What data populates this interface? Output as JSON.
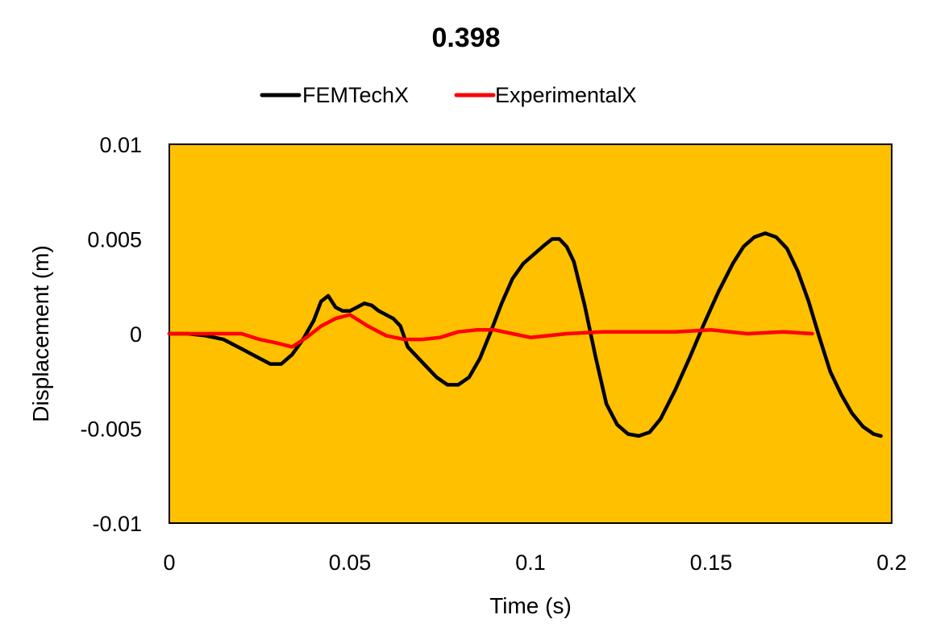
{
  "chart_data": {
    "type": "line",
    "title": "0.398",
    "xlabel": "Time (s)",
    "ylabel": "Displacement (m)",
    "xlim": [
      0,
      0.2
    ],
    "ylim": [
      -0.01,
      0.01
    ],
    "xticks": [
      0,
      0.05,
      0.1,
      0.15,
      0.2
    ],
    "xtick_labels": [
      "0",
      "0.05",
      "0.1",
      "0.15",
      "0.2"
    ],
    "yticks": [
      -0.01,
      -0.005,
      0,
      0.005,
      0.01
    ],
    "ytick_labels": [
      "-0.01",
      "-0.005",
      "0",
      "0.005",
      "0.01"
    ],
    "grid": false,
    "legend_position": "top",
    "plot_background": "#FFC000",
    "series": [
      {
        "name": "FEMTechX",
        "color": "#000000",
        "points": [
          [
            0,
            0
          ],
          [
            0.005,
            0
          ],
          [
            0.01,
            -0.0001
          ],
          [
            0.015,
            -0.0003
          ],
          [
            0.02,
            -0.0008
          ],
          [
            0.025,
            -0.0013
          ],
          [
            0.028,
            -0.0016
          ],
          [
            0.031,
            -0.0016
          ],
          [
            0.034,
            -0.0011
          ],
          [
            0.037,
            -0.0003
          ],
          [
            0.04,
            0.0007
          ],
          [
            0.042,
            0.0017
          ],
          [
            0.044,
            0.002
          ],
          [
            0.046,
            0.0014
          ],
          [
            0.048,
            0.0012
          ],
          [
            0.05,
            0.0012
          ],
          [
            0.052,
            0.0014
          ],
          [
            0.054,
            0.0016
          ],
          [
            0.056,
            0.0015
          ],
          [
            0.058,
            0.0012
          ],
          [
            0.06,
            0.001
          ],
          [
            0.062,
            0.0008
          ],
          [
            0.064,
            0.0004
          ],
          [
            0.066,
            -0.0007
          ],
          [
            0.07,
            -0.0015
          ],
          [
            0.074,
            -0.0023
          ],
          [
            0.077,
            -0.0027
          ],
          [
            0.08,
            -0.0027
          ],
          [
            0.083,
            -0.0023
          ],
          [
            0.086,
            -0.0013
          ],
          [
            0.089,
            0.0001
          ],
          [
            0.092,
            0.0016
          ],
          [
            0.095,
            0.0029
          ],
          [
            0.098,
            0.0037
          ],
          [
            0.101,
            0.0042
          ],
          [
            0.104,
            0.0047
          ],
          [
            0.106,
            0.005
          ],
          [
            0.108,
            0.005
          ],
          [
            0.11,
            0.0046
          ],
          [
            0.112,
            0.0038
          ],
          [
            0.115,
            0.0015
          ],
          [
            0.118,
            -0.0012
          ],
          [
            0.121,
            -0.0037
          ],
          [
            0.124,
            -0.0048
          ],
          [
            0.127,
            -0.0053
          ],
          [
            0.13,
            -0.0054
          ],
          [
            0.133,
            -0.0052
          ],
          [
            0.136,
            -0.0045
          ],
          [
            0.14,
            -0.003
          ],
          [
            0.144,
            -0.0013
          ],
          [
            0.148,
            0.0005
          ],
          [
            0.152,
            0.0022
          ],
          [
            0.156,
            0.0037
          ],
          [
            0.159,
            0.0046
          ],
          [
            0.162,
            0.0051
          ],
          [
            0.165,
            0.0053
          ],
          [
            0.168,
            0.0051
          ],
          [
            0.171,
            0.0045
          ],
          [
            0.174,
            0.0033
          ],
          [
            0.177,
            0.0017
          ],
          [
            0.18,
            -0.0002
          ],
          [
            0.183,
            -0.002
          ],
          [
            0.186,
            -0.0032
          ],
          [
            0.189,
            -0.0042
          ],
          [
            0.192,
            -0.0049
          ],
          [
            0.195,
            -0.0053
          ],
          [
            0.197,
            -0.0054
          ]
        ]
      },
      {
        "name": "ExperimentalX",
        "color": "#FF0000",
        "points": [
          [
            0,
            0
          ],
          [
            0.01,
            0
          ],
          [
            0.02,
            0
          ],
          [
            0.025,
            -0.0003
          ],
          [
            0.03,
            -0.0005
          ],
          [
            0.034,
            -0.0007
          ],
          [
            0.038,
            -0.0002
          ],
          [
            0.042,
            0.0004
          ],
          [
            0.046,
            0.0008
          ],
          [
            0.05,
            0.001
          ],
          [
            0.055,
            0.0004
          ],
          [
            0.06,
            -0.0001
          ],
          [
            0.065,
            -0.0003
          ],
          [
            0.07,
            -0.0003
          ],
          [
            0.075,
            -0.0002
          ],
          [
            0.08,
            0.0001
          ],
          [
            0.085,
            0.0002
          ],
          [
            0.09,
            0.0002
          ],
          [
            0.095,
            0
          ],
          [
            0.1,
            -0.0002
          ],
          [
            0.105,
            -0.0001
          ],
          [
            0.11,
            0
          ],
          [
            0.12,
            0.0001
          ],
          [
            0.13,
            0.0001
          ],
          [
            0.14,
            0.0001
          ],
          [
            0.15,
            0.0002
          ],
          [
            0.16,
            0
          ],
          [
            0.17,
            0.0001
          ],
          [
            0.178,
            0
          ]
        ]
      }
    ]
  }
}
